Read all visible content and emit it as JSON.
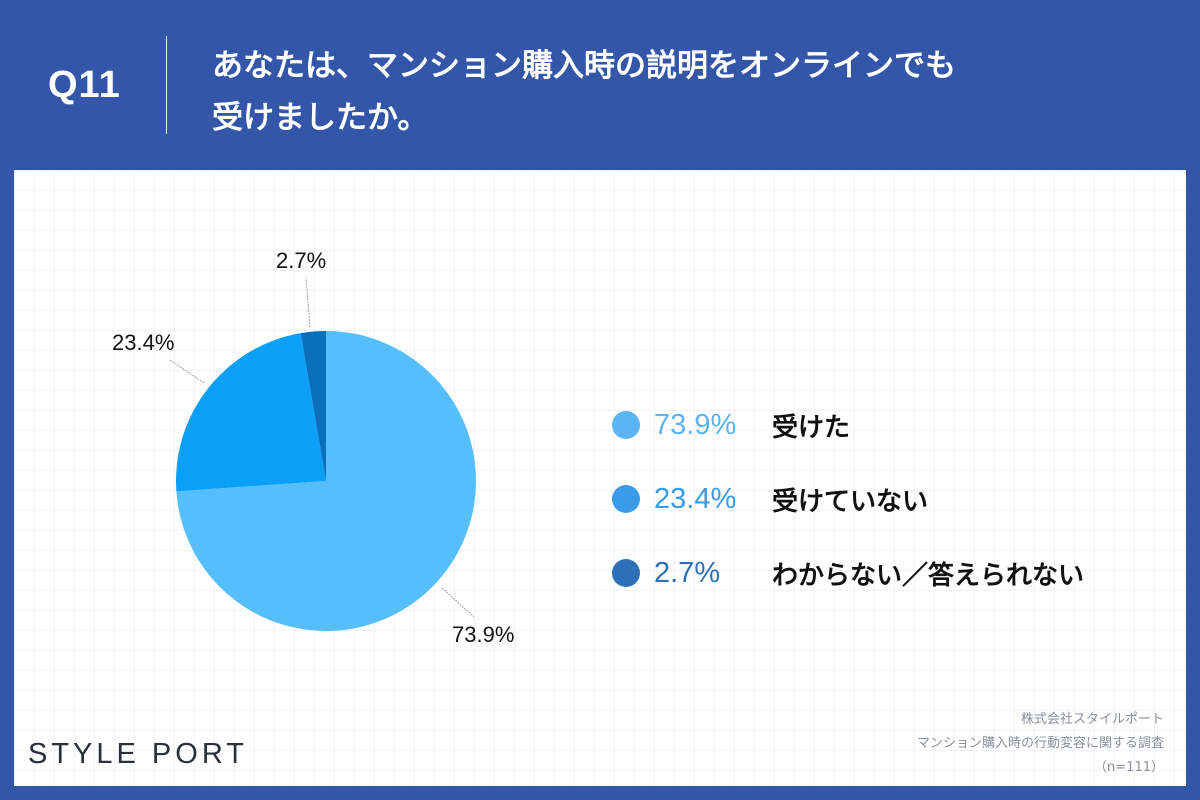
{
  "header": {
    "question_number": "Q11",
    "question_text": "あなたは、マンション購入時の説明をオンラインでも\n受けましたか。"
  },
  "colors": {
    "background": "#3356A8",
    "slice_received": "#55BEFB",
    "slice_not_received": "#0AA0F8",
    "slice_unknown": "#0A70BC",
    "legend_pct_received": "#5DB4F2",
    "legend_pct_not_received": "#3A9BEA",
    "legend_pct_unknown": "#2E70B8"
  },
  "chart_data": {
    "type": "pie",
    "title": "あなたは、マンション購入時の説明をオンラインでも受けましたか。",
    "categories": [
      "受けた",
      "受けていない",
      "わからない／答えられない"
    ],
    "values": [
      73.9,
      23.4,
      2.7
    ],
    "unit": "%",
    "start_angle": "12 o'clock, clockwise",
    "data_labels": [
      "73.9%",
      "23.4%",
      "2.7%"
    ],
    "legend_position": "right",
    "sample_size": "n=111"
  },
  "pie": {
    "labels": {
      "received": "73.9%",
      "not_received": "23.4%",
      "unknown": "2.7%"
    }
  },
  "legend": {
    "items": [
      {
        "pct": "73.9%",
        "label": "受けた"
      },
      {
        "pct": "23.4%",
        "label": "受けていない"
      },
      {
        "pct": "2.7%",
        "label": "わからない／答えられない"
      }
    ]
  },
  "footer": {
    "logo": "STYLE PORT",
    "source_company": "株式会社スタイルポート",
    "source_survey": "マンション購入時の行動変容に関する調査",
    "sample": "（n=111）"
  }
}
